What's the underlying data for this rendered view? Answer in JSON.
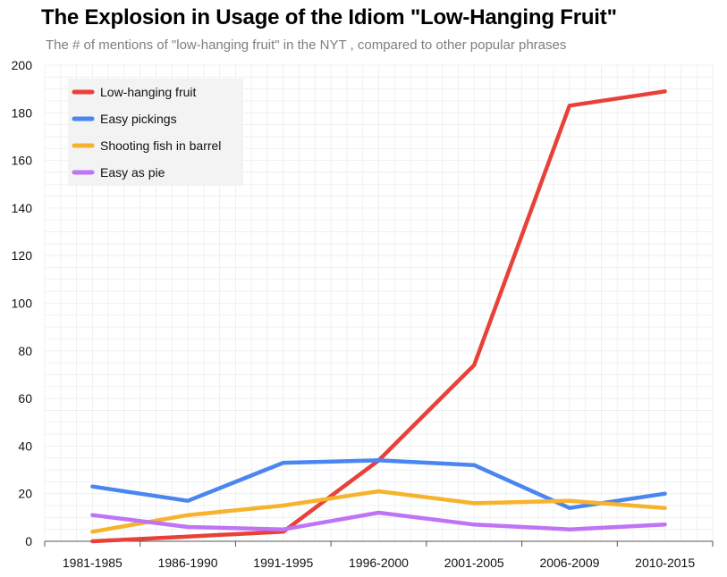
{
  "chart_data": {
    "type": "line",
    "title": "The Explosion in Usage of the Idiom \"Low-Hanging Fruit\"",
    "subtitle": "The # of mentions of \"low-hanging fruit\" in the NYT , compared to other popular phrases",
    "xlabel": "",
    "ylabel": "",
    "categories": [
      "1981-1985",
      "1986-1990",
      "1991-1995",
      "1996-2000",
      "2001-2005",
      "2006-2009",
      "2010-2015"
    ],
    "ylim": [
      0,
      200
    ],
    "yticks": [
      0,
      20,
      40,
      60,
      80,
      100,
      120,
      140,
      160,
      180,
      200
    ],
    "grid": true,
    "legend_position": "top-left",
    "series": [
      {
        "name": "Low-hanging fruit",
        "color": "#e8413a",
        "values": [
          0,
          2,
          4,
          34,
          74,
          183,
          189
        ]
      },
      {
        "name": "Easy pickings",
        "color": "#4a86f0",
        "values": [
          23,
          17,
          33,
          34,
          32,
          14,
          20
        ]
      },
      {
        "name": "Shooting fish in barrel",
        "color": "#f7b32b",
        "values": [
          4,
          11,
          15,
          21,
          16,
          17,
          14
        ]
      },
      {
        "name": "Easy as pie",
        "color": "#bf73f5",
        "values": [
          11,
          6,
          5,
          12,
          7,
          5,
          7
        ]
      }
    ]
  }
}
